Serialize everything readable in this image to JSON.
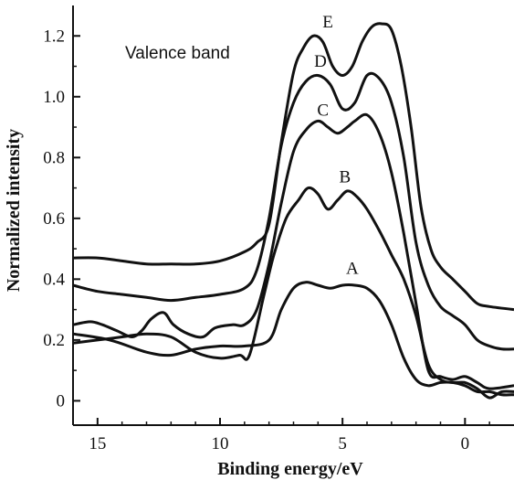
{
  "chart_data": {
    "type": "line",
    "title": "",
    "xlabel": "Binding energy/eV",
    "ylabel": "Normalized intensity",
    "annotation": "Valence band",
    "xlim": [
      16,
      -2
    ],
    "ylim": [
      -0.08,
      1.3
    ],
    "x_ticks": [
      15,
      10,
      5,
      0
    ],
    "x_tick_labels": [
      "15",
      "10",
      "5",
      "0"
    ],
    "y_ticks": [
      0,
      0.2,
      0.4,
      0.6,
      0.8,
      1.0,
      1.2
    ],
    "y_tick_labels": [
      "0",
      "0.2",
      "0.4",
      "0.6",
      "0.8",
      "1.0",
      "1.2"
    ],
    "grid": false,
    "series": [
      {
        "name": "A",
        "label_at": [
          4.6,
          0.4
        ],
        "points": [
          [
            16,
            0.22
          ],
          [
            14.5,
            0.2
          ],
          [
            13,
            0.16
          ],
          [
            12,
            0.15
          ],
          [
            11,
            0.17
          ],
          [
            10,
            0.18
          ],
          [
            9,
            0.18
          ],
          [
            8,
            0.2
          ],
          [
            7.5,
            0.3
          ],
          [
            7,
            0.37
          ],
          [
            6.5,
            0.39
          ],
          [
            6,
            0.38
          ],
          [
            5.5,
            0.37
          ],
          [
            5,
            0.38
          ],
          [
            4.5,
            0.38
          ],
          [
            4,
            0.37
          ],
          [
            3.5,
            0.33
          ],
          [
            3,
            0.25
          ],
          [
            2.5,
            0.14
          ],
          [
            2,
            0.07
          ],
          [
            1.5,
            0.05
          ],
          [
            1,
            0.06
          ],
          [
            0.5,
            0.06
          ],
          [
            0,
            0.05
          ],
          [
            -0.5,
            0.03
          ],
          [
            -1,
            0.03
          ],
          [
            -1.5,
            0.02
          ],
          [
            -2,
            0.02
          ]
        ]
      },
      {
        "name": "B",
        "label_at": [
          4.9,
          0.7
        ],
        "points": [
          [
            16,
            0.19
          ],
          [
            15,
            0.2
          ],
          [
            14,
            0.21
          ],
          [
            13,
            0.22
          ],
          [
            12,
            0.21
          ],
          [
            11,
            0.16
          ],
          [
            10,
            0.14
          ],
          [
            9.2,
            0.15
          ],
          [
            8.8,
            0.15
          ],
          [
            8.2,
            0.35
          ],
          [
            7.8,
            0.48
          ],
          [
            7.3,
            0.6
          ],
          [
            6.8,
            0.66
          ],
          [
            6.4,
            0.7
          ],
          [
            6,
            0.68
          ],
          [
            5.6,
            0.63
          ],
          [
            5.2,
            0.66
          ],
          [
            4.8,
            0.69
          ],
          [
            4.4,
            0.67
          ],
          [
            4,
            0.63
          ],
          [
            3.5,
            0.56
          ],
          [
            3,
            0.48
          ],
          [
            2.5,
            0.4
          ],
          [
            2,
            0.28
          ],
          [
            1.5,
            0.12
          ],
          [
            1,
            0.07
          ],
          [
            0.5,
            0.06
          ],
          [
            0,
            0.06
          ],
          [
            -0.5,
            0.04
          ],
          [
            -1,
            0.01
          ],
          [
            -1.5,
            0.03
          ],
          [
            -2,
            0.03
          ]
        ]
      },
      {
        "name": "C",
        "label_at": [
          5.8,
          0.92
        ],
        "points": [
          [
            16,
            0.25
          ],
          [
            15.3,
            0.26
          ],
          [
            14.8,
            0.25
          ],
          [
            14.2,
            0.23
          ],
          [
            13.6,
            0.21
          ],
          [
            13.2,
            0.23
          ],
          [
            12.8,
            0.27
          ],
          [
            12.3,
            0.29
          ],
          [
            11.9,
            0.25
          ],
          [
            11.3,
            0.22
          ],
          [
            10.7,
            0.21
          ],
          [
            10.2,
            0.24
          ],
          [
            9.5,
            0.25
          ],
          [
            9,
            0.25
          ],
          [
            8.5,
            0.3
          ],
          [
            8,
            0.45
          ],
          [
            7.5,
            0.65
          ],
          [
            7,
            0.82
          ],
          [
            6.5,
            0.89
          ],
          [
            6,
            0.92
          ],
          [
            5.6,
            0.9
          ],
          [
            5.2,
            0.88
          ],
          [
            4.8,
            0.9
          ],
          [
            4.5,
            0.92
          ],
          [
            4,
            0.94
          ],
          [
            3.5,
            0.88
          ],
          [
            3,
            0.75
          ],
          [
            2.5,
            0.55
          ],
          [
            2,
            0.32
          ],
          [
            1.5,
            0.1
          ],
          [
            1,
            0.08
          ],
          [
            0.5,
            0.07
          ],
          [
            0,
            0.08
          ],
          [
            -0.5,
            0.06
          ],
          [
            -1,
            0.04
          ],
          [
            -2,
            0.05
          ]
        ]
      },
      {
        "name": "D",
        "label_at": [
          5.9,
          1.08
        ],
        "points": [
          [
            16,
            0.38
          ],
          [
            15,
            0.36
          ],
          [
            14,
            0.35
          ],
          [
            13,
            0.34
          ],
          [
            12,
            0.33
          ],
          [
            11,
            0.34
          ],
          [
            10,
            0.35
          ],
          [
            9,
            0.37
          ],
          [
            8.5,
            0.43
          ],
          [
            8,
            0.6
          ],
          [
            7.5,
            0.84
          ],
          [
            7,
            0.98
          ],
          [
            6.5,
            1.05
          ],
          [
            6,
            1.07
          ],
          [
            5.5,
            1.04
          ],
          [
            5,
            0.96
          ],
          [
            4.5,
            0.98
          ],
          [
            4,
            1.07
          ],
          [
            3.5,
            1.06
          ],
          [
            3,
            0.98
          ],
          [
            2.5,
            0.8
          ],
          [
            2,
            0.52
          ],
          [
            1.5,
            0.38
          ],
          [
            1,
            0.31
          ],
          [
            0.5,
            0.28
          ],
          [
            0,
            0.25
          ],
          [
            -0.5,
            0.2
          ],
          [
            -1,
            0.18
          ],
          [
            -1.5,
            0.17
          ],
          [
            -2,
            0.17
          ]
        ]
      },
      {
        "name": "E",
        "label_at": [
          5.6,
          1.21
        ],
        "points": [
          [
            16,
            0.47
          ],
          [
            15,
            0.47
          ],
          [
            14,
            0.46
          ],
          [
            13,
            0.45
          ],
          [
            12,
            0.45
          ],
          [
            11,
            0.45
          ],
          [
            10,
            0.46
          ],
          [
            9,
            0.49
          ],
          [
            8.5,
            0.52
          ],
          [
            8,
            0.58
          ],
          [
            7.5,
            0.85
          ],
          [
            7,
            1.08
          ],
          [
            6.6,
            1.16
          ],
          [
            6.2,
            1.2
          ],
          [
            5.8,
            1.18
          ],
          [
            5.4,
            1.1
          ],
          [
            5,
            1.07
          ],
          [
            4.6,
            1.1
          ],
          [
            4.2,
            1.18
          ],
          [
            3.8,
            1.23
          ],
          [
            3.4,
            1.24
          ],
          [
            3,
            1.22
          ],
          [
            2.6,
            1.1
          ],
          [
            2.2,
            0.9
          ],
          [
            1.8,
            0.64
          ],
          [
            1.4,
            0.5
          ],
          [
            1,
            0.44
          ],
          [
            0.5,
            0.4
          ],
          [
            0,
            0.36
          ],
          [
            -0.5,
            0.32
          ],
          [
            -1,
            0.31
          ],
          [
            -2,
            0.3
          ]
        ]
      }
    ]
  }
}
